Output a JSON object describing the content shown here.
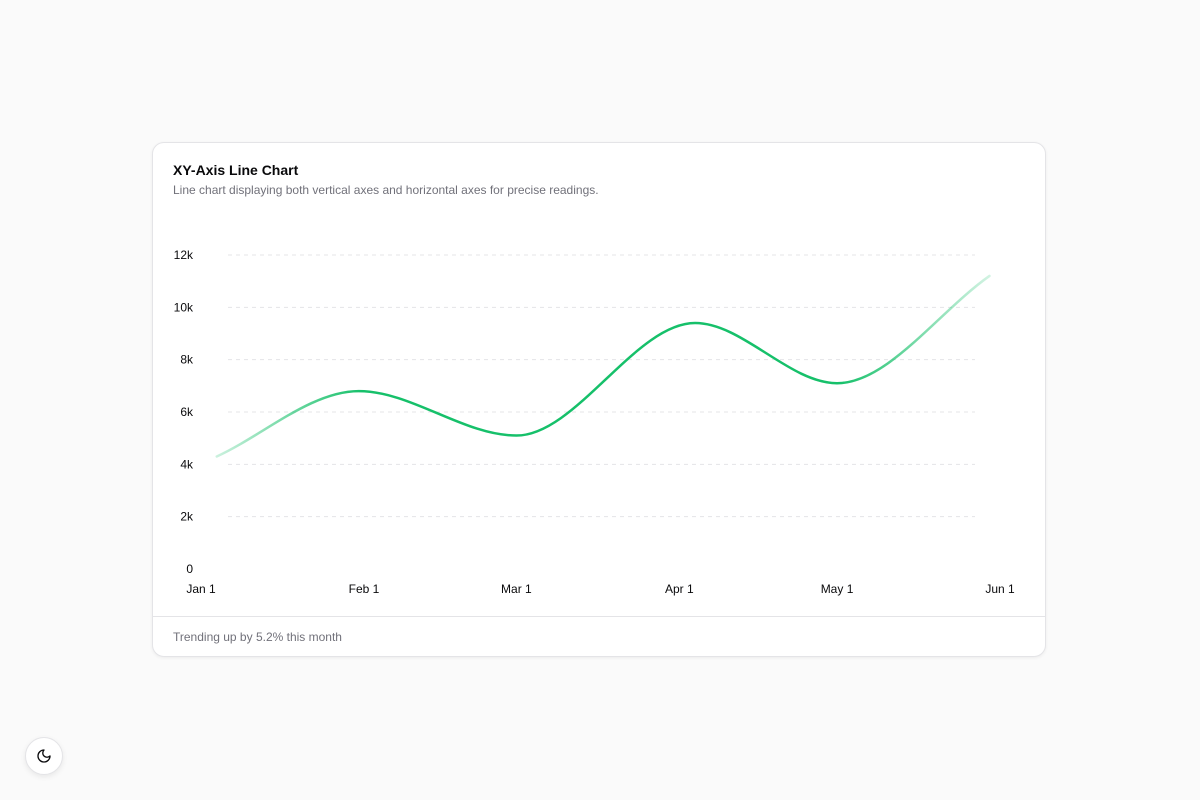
{
  "card": {
    "title": "XY-Axis Line Chart",
    "description": "Line chart displaying both vertical axes and horizontal axes for precise readings.",
    "footer": "Trending up by 5.2% this month"
  },
  "theme_toggle": {
    "icon": "moon-icon"
  },
  "colors": {
    "line": "#16c06a",
    "grid": "#e4e4e7"
  },
  "chart_data": {
    "type": "line",
    "title": "",
    "xlabel": "",
    "ylabel": "",
    "x": [
      "2024-01-01",
      "2024-02-01",
      "2024-03-01",
      "2024-04-01",
      "2024-05-01",
      "2024-06-01"
    ],
    "x_tick_labels": [
      "Jan 1",
      "Feb 1",
      "Mar 1",
      "Apr 1",
      "May 1",
      "Jun 1"
    ],
    "y_ticks": [
      0,
      2000,
      4000,
      6000,
      8000,
      10000,
      12000
    ],
    "y_tick_labels": [
      "0",
      "2k",
      "4k",
      "6k",
      "8k",
      "10k",
      "12k"
    ],
    "ylim": [
      0,
      12000
    ],
    "grid": "horizontal dashed",
    "series": [
      {
        "points": [
          {
            "x": "2024-01-04",
            "y": 4300
          },
          {
            "x": "2024-01-31",
            "y": 6800
          },
          {
            "x": "2024-03-01",
            "y": 5100
          },
          {
            "x": "2024-04-04",
            "y": 9400
          },
          {
            "x": "2024-05-01",
            "y": 7100
          },
          {
            "x": "2024-05-30",
            "y": 11200
          }
        ]
      }
    ]
  }
}
